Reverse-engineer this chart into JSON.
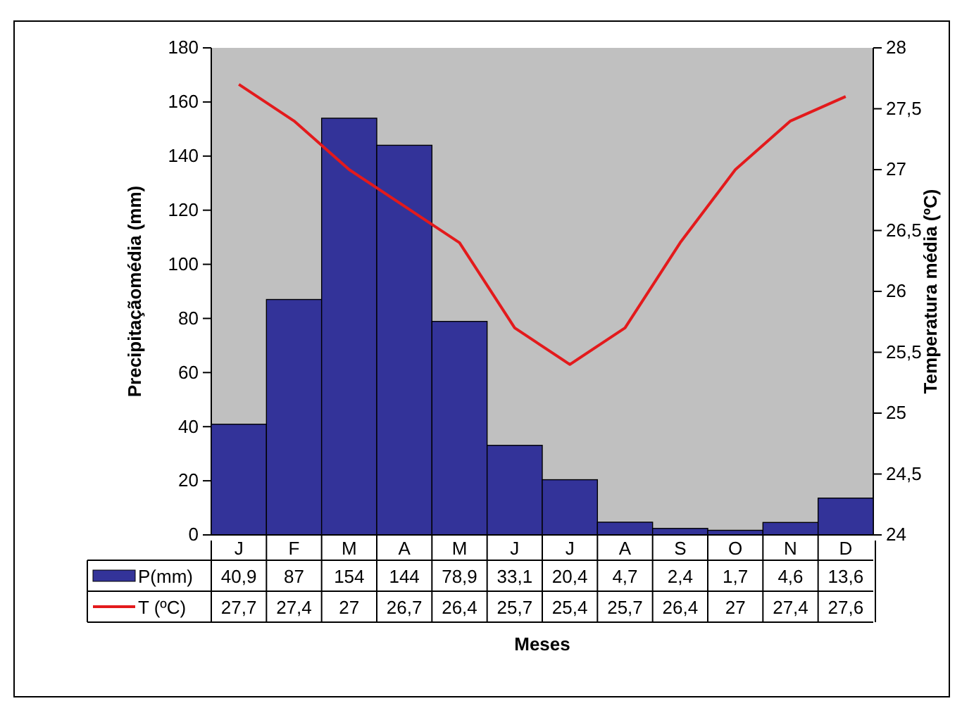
{
  "chart_data": {
    "type": "bar",
    "xlabel": "Meses",
    "ylabel": "Precipitaçãomédia (mm)",
    "y2label": "Temperatura média (ºC)",
    "categories": [
      "J",
      "F",
      "M",
      "A",
      "M",
      "J",
      "J",
      "A",
      "S",
      "O",
      "N",
      "D"
    ],
    "series": [
      {
        "name": "P(mm)",
        "type": "bar",
        "color": "#333399",
        "values": [
          40.9,
          87,
          154,
          144,
          78.9,
          33.1,
          20.4,
          4.7,
          2.4,
          1.7,
          4.6,
          13.6
        ],
        "value_labels": [
          "40,9",
          "87",
          "154",
          "144",
          "78,9",
          "33,1",
          "20,4",
          "4,7",
          "2,4",
          "1,7",
          "4,6",
          "13,6"
        ]
      },
      {
        "name": "T (ºC)",
        "type": "line",
        "axis": "y2",
        "color": "#e31a1c",
        "marker": "none",
        "values": [
          27.7,
          27.4,
          27,
          26.7,
          26.4,
          25.7,
          25.4,
          25.7,
          26.4,
          27,
          27.4,
          27.6
        ],
        "value_labels": [
          "27,7",
          "27,4",
          "27",
          "26,7",
          "26,4",
          "25,7",
          "25,4",
          "25,7",
          "26,4",
          "27",
          "27,4",
          "27,6"
        ]
      }
    ],
    "ylim": [
      0,
      180
    ],
    "yticks": [
      0,
      20,
      40,
      60,
      80,
      100,
      120,
      140,
      160,
      180
    ],
    "y2lim": [
      24,
      28
    ],
    "y2ticks": [
      24,
      {
        "value": 24.5,
        "label": "24,5"
      },
      25,
      {
        "value": 25.5,
        "label": "25,5"
      },
      26,
      {
        "value": 26.5,
        "label": "26,5"
      },
      27,
      {
        "value": 27.5,
        "label": "27,5"
      },
      28
    ],
    "grid": false,
    "legend": "bottom"
  }
}
